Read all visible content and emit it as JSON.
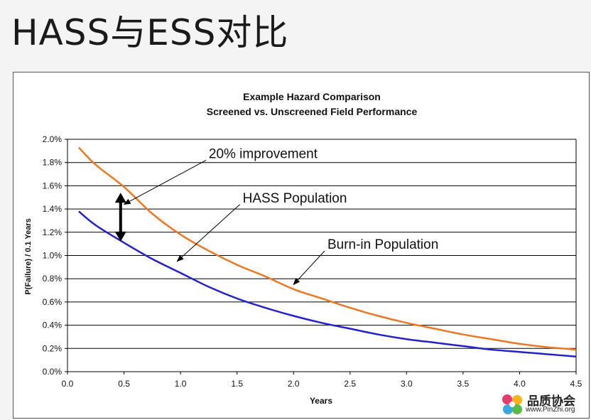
{
  "slide": {
    "title": "HASS与ESS对比"
  },
  "watermark": {
    "name": "品质协会",
    "url": "www.PinZhi.org"
  },
  "chart_data": {
    "type": "line",
    "title": "Example Hazard Comparison",
    "subtitle": "Screened vs. Unscreened Field Performance",
    "xlabel": "Years",
    "ylabel": "P(Failure) / 0.1 Years",
    "xlim": [
      0,
      4.5
    ],
    "ylim": [
      0,
      0.02
    ],
    "xticks": [
      0,
      0.5,
      1.0,
      1.5,
      2.0,
      2.5,
      3.0,
      3.5,
      4.0,
      4.5
    ],
    "xtick_labels": [
      "0.0",
      "0.5",
      "1.0",
      "1.5",
      "2.0",
      "2.5",
      "3.0",
      "3.5",
      "4.0",
      "4.5"
    ],
    "yticks": [
      0,
      0.002,
      0.004,
      0.006,
      0.008,
      0.01,
      0.012,
      0.014,
      0.016,
      0.018,
      0.02
    ],
    "ytick_labels": [
      "0.0%",
      "0.2%",
      "0.4%",
      "0.6%",
      "0.8%",
      "1.0%",
      "1.2%",
      "1.4%",
      "1.6%",
      "1.8%",
      "2.0%"
    ],
    "grid": "horizontal",
    "series": [
      {
        "name": "Burn-in Population",
        "color": "#ee7722",
        "x": [
          0.1,
          0.25,
          0.5,
          0.75,
          1.0,
          1.25,
          1.5,
          1.75,
          2.0,
          2.25,
          2.5,
          2.75,
          3.0,
          3.25,
          3.5,
          3.75,
          4.0,
          4.25,
          4.5
        ],
        "y": [
          0.0193,
          0.0178,
          0.0159,
          0.0136,
          0.0118,
          0.0104,
          0.0092,
          0.0082,
          0.0071,
          0.0063,
          0.0055,
          0.0048,
          0.0042,
          0.0037,
          0.0032,
          0.0028,
          0.0024,
          0.0021,
          0.0019
        ]
      },
      {
        "name": "HASS Population",
        "color": "#2222cc",
        "x": [
          0.1,
          0.25,
          0.5,
          0.75,
          1.0,
          1.25,
          1.5,
          1.75,
          2.0,
          2.25,
          2.5,
          2.75,
          3.0,
          3.25,
          3.5,
          3.75,
          4.0,
          4.25,
          4.5
        ],
        "y": [
          0.0138,
          0.0126,
          0.0111,
          0.0097,
          0.0085,
          0.0073,
          0.0063,
          0.0055,
          0.0048,
          0.0042,
          0.0037,
          0.0032,
          0.0028,
          0.0025,
          0.0022,
          0.0019,
          0.0017,
          0.0015,
          0.0013
        ]
      }
    ],
    "annotations": [
      {
        "text": "20% improvement",
        "x": 1.25,
        "y": 0.0188,
        "target_x": 0.5,
        "target_y": 0.0144
      },
      {
        "text": "HASS Population",
        "x": 1.55,
        "y": 0.015,
        "target_x": 0.97,
        "target_y": 0.0095
      },
      {
        "text": "Burn-in Population",
        "x": 2.3,
        "y": 0.011,
        "target_x": 2.0,
        "target_y": 0.0075
      }
    ],
    "difference_marker": {
      "x": 0.47,
      "y_top": 0.0154,
      "y_bottom": 0.0112
    }
  }
}
